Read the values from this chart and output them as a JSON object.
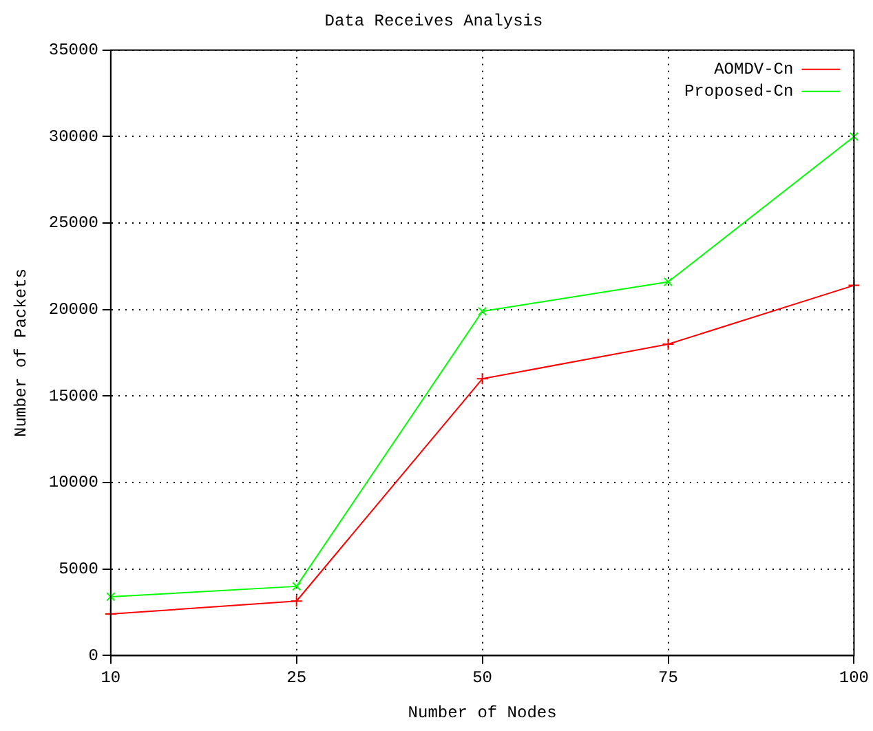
{
  "chart_data": {
    "type": "line",
    "title": "Data Receives Analysis",
    "xlabel": "Number of Nodes",
    "ylabel": "Number of Packets",
    "categories": [
      "10",
      "25",
      "50",
      "75",
      "100"
    ],
    "series": [
      {
        "name": "AOMDV-Cn",
        "color": "#ff0000",
        "values": [
          2400,
          3150,
          16000,
          18000,
          21400
        ]
      },
      {
        "name": "Proposed-Cn",
        "color": "#00ff00",
        "values": [
          3400,
          4000,
          19900,
          21600,
          30000
        ]
      }
    ],
    "ylim": [
      0,
      35000
    ],
    "yticks": [
      0,
      5000,
      10000,
      15000,
      20000,
      25000,
      30000,
      35000
    ],
    "grid": true,
    "legend": "top right",
    "marker": "cross",
    "line_style": "solid"
  }
}
